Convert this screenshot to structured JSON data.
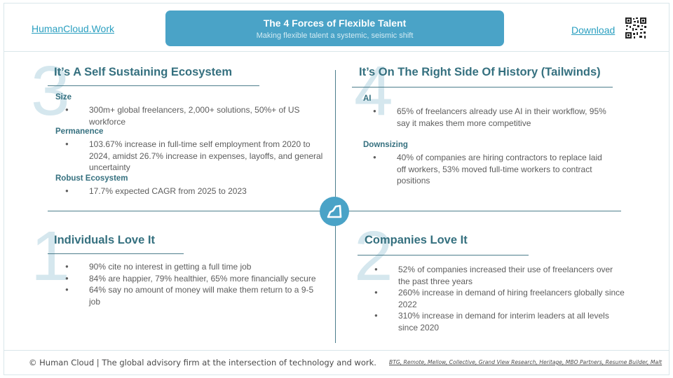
{
  "header": {
    "site_link": "HumanCloud.Work",
    "title": "The 4 Forces of Flexible Talent",
    "subtitle": "Making flexible talent a systemic, seismic shift",
    "download_label": "Download",
    "qr_icon": "qr-code-icon"
  },
  "quadrants": {
    "q3": {
      "number": "3",
      "title": "It’s A Self Sustaining Ecosystem",
      "sections": [
        {
          "heading": "Size",
          "bullets": [
            "300m+ global freelancers, 2,000+ solutions, 50%+ of US workforce"
          ]
        },
        {
          "heading": "Permanence",
          "bullets": [
            "103.67% increase in full-time self employment from 2020 to 2024, amidst 26.7% increase in expenses, layoffs, and general uncertainty"
          ]
        },
        {
          "heading": "Robust Ecosystem",
          "bullets": [
            "17.7% expected CAGR from 2025 to 2023"
          ]
        }
      ]
    },
    "q4": {
      "number": "4",
      "title": "It’s On The Right Side Of History (Tailwinds)",
      "sections": [
        {
          "heading": "AI",
          "bullets": [
            "65% of freelancers already use AI in their workflow, 95% say it makes them more competitive"
          ]
        },
        {
          "heading": "Downsizing",
          "bullets": [
            "40% of companies are hiring contractors to replace laid off workers, 53% moved full-time workers to contract positions"
          ]
        }
      ]
    },
    "q1": {
      "number": "1",
      "title": "Individuals Love It",
      "bullets": [
        "90% cite no interest in getting a full time job",
        "84% are happier, 79% healthier, 65% more financially secure",
        "64% say no amount of money will make them return to a 9-5 job"
      ]
    },
    "q2": {
      "number": "2",
      "title": "Companies Love It",
      "bullets": [
        "52% of companies increased their use of freelancers over the past three years",
        "260% increase in demand of hiring freelancers globally since 2022",
        "310% increase in demand for interim leaders at all levels since 2020"
      ]
    }
  },
  "center_icon": "cloud-logo-icon",
  "footer": {
    "left": "© Human Cloud  |  The global advisory firm at the intersection of technology and work.",
    "sources": "BTG, Remote, Mellow, Collective, Grand View Research, Heritage, MBO Partners, Resume Builder, Malt"
  },
  "colors": {
    "accent": "#4aa3c7",
    "heading": "#35707f",
    "rule": "#4d7e8c",
    "big_number": "#d5e7ee"
  }
}
